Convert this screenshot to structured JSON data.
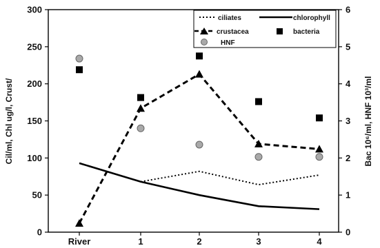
{
  "chart_data": {
    "type": "line",
    "categories": [
      "River",
      "1",
      "2",
      "3",
      "4"
    ],
    "left_axis": {
      "label": "Cil/ml, Chl ug/l, Crust/",
      "ylim": [
        0,
        300
      ],
      "ticks": [
        "0",
        "50",
        "100",
        "150",
        "200",
        "250",
        "300"
      ]
    },
    "right_axis": {
      "label": "Bac 10⁶/ml, HNF 10³/ml",
      "ylim": [
        0,
        6
      ],
      "ticks": [
        "0",
        "1",
        "2",
        "3",
        "4",
        "5",
        "6"
      ]
    },
    "series": [
      {
        "name": "ciliates",
        "axis": "left",
        "style": "dotted-line",
        "values": [
          null,
          68,
          82,
          64,
          77
        ]
      },
      {
        "name": "chlorophyll",
        "axis": "left",
        "style": "solid-line",
        "values": [
          93,
          68,
          50,
          35,
          31
        ]
      },
      {
        "name": "crustacea",
        "axis": "left",
        "style": "dashed-line-triangle",
        "values": [
          12,
          167,
          213,
          119,
          112
        ]
      },
      {
        "name": "bacteria",
        "axis": "right",
        "style": "square-marker",
        "values": [
          4.38,
          3.63,
          4.75,
          3.52,
          3.08
        ]
      },
      {
        "name": "HNF",
        "axis": "right",
        "style": "circle-marker",
        "values": [
          4.68,
          2.8,
          2.36,
          2.03,
          2.03
        ]
      }
    ],
    "legend": {
      "position": "top-right",
      "entries": [
        {
          "label": "ciliates",
          "symbol": "dotted-line"
        },
        {
          "label": "chlorophyll",
          "symbol": "solid-line"
        },
        {
          "label": "crustacea",
          "symbol": "dashed-triangle"
        },
        {
          "label": "bacteria",
          "symbol": "square"
        },
        {
          "label": "HNF",
          "symbol": "circle"
        }
      ]
    },
    "colors": {
      "line": "#000000",
      "marker": "#000000",
      "hnf_fill": "#a9a9a9",
      "hnf_stroke": "#666666"
    },
    "grid": false
  }
}
